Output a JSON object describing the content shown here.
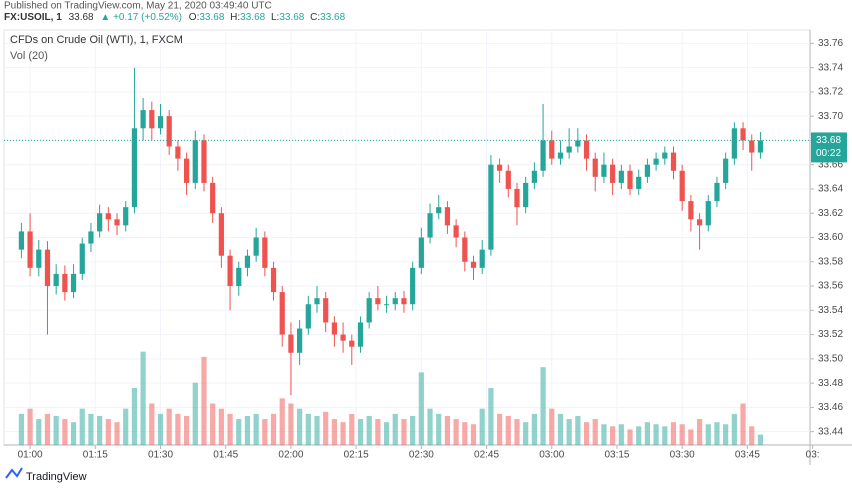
{
  "header": {
    "published": "Published on TradingView.com, May 21, 2020 03:49:40 UTC",
    "symbol": "FX:USOIL, 1",
    "last": "33.68",
    "change": "▲ +0.17 (+0.52%)",
    "ohlc": [
      {
        "label": "O:",
        "value": "33.68"
      },
      {
        "label": "H:",
        "value": "33.68"
      },
      {
        "label": "L:",
        "value": "33.68"
      },
      {
        "label": "C:",
        "value": "33.68"
      }
    ]
  },
  "footer": {
    "brand": "TradingView"
  },
  "chart_data": {
    "type": "candlestick",
    "title": "CFDs on Crude Oil (WTI), 1, FXCM",
    "volume_title": "Vol (20)",
    "up_color": "#26a69a",
    "down_color": "#ef5350",
    "grid": true,
    "last_price": 33.68,
    "countdown": "00:22",
    "xlim": [
      -2,
      90.7
    ],
    "xticks": [
      {
        "value": 1,
        "label": "01:00"
      },
      {
        "value": 8.5,
        "label": "01:15"
      },
      {
        "value": 16,
        "label": "01:30"
      },
      {
        "value": 23.5,
        "label": "01:45"
      },
      {
        "value": 31,
        "label": "02:00"
      },
      {
        "value": 38.5,
        "label": "02:15"
      },
      {
        "value": 46,
        "label": "02:30"
      },
      {
        "value": 53.5,
        "label": "02:45"
      },
      {
        "value": 61,
        "label": "03:00"
      },
      {
        "value": 68.5,
        "label": "03:15"
      },
      {
        "value": 76,
        "label": "03:30"
      },
      {
        "value": 83.5,
        "label": "03:45"
      },
      {
        "value": 91,
        "label": "03:"
      }
    ],
    "ylim": [
      33.429,
      33.771
    ],
    "yticks": [
      {
        "value": 33.44,
        "label": "33.44"
      },
      {
        "value": 33.46,
        "label": "33.46"
      },
      {
        "value": 33.48,
        "label": "33.48"
      },
      {
        "value": 33.5,
        "label": "33.50"
      },
      {
        "value": 33.52,
        "label": "33.52"
      },
      {
        "value": 33.54,
        "label": "33.54"
      },
      {
        "value": 33.56,
        "label": "33.56"
      },
      {
        "value": 33.58,
        "label": "33.58"
      },
      {
        "value": 33.6,
        "label": "33.60"
      },
      {
        "value": 33.62,
        "label": "33.62"
      },
      {
        "value": 33.64,
        "label": "33.64"
      },
      {
        "value": 33.66,
        "label": "33.66"
      },
      {
        "value": 33.68,
        "label": "33.68"
      },
      {
        "value": 33.7,
        "label": "33.70"
      },
      {
        "value": 33.72,
        "label": "33.72"
      },
      {
        "value": 33.74,
        "label": "33.74"
      },
      {
        "value": 33.76,
        "label": "33.76"
      }
    ],
    "volume_ylim": [
      0,
      400
    ],
    "open": [
      33.59,
      33.605,
      33.575,
      33.59,
      33.56,
      33.57,
      33.555,
      33.57,
      33.595,
      33.605,
      33.62,
      33.615,
      33.61,
      33.625,
      33.69,
      33.705,
      33.69,
      33.7,
      33.675,
      33.665,
      33.645,
      33.68,
      33.645,
      33.62,
      33.585,
      33.56,
      33.575,
      33.585,
      33.6,
      33.575,
      33.555,
      33.52,
      33.505,
      33.525,
      33.545,
      33.55,
      33.53,
      33.52,
      33.515,
      33.51,
      33.53,
      33.55,
      33.545,
      33.545,
      33.55,
      33.545,
      33.575,
      33.6,
      33.62,
      33.625,
      33.61,
      33.6,
      33.58,
      33.575,
      33.59,
      33.66,
      33.655,
      33.64,
      33.625,
      33.645,
      33.655,
      33.68,
      33.665,
      33.67,
      33.675,
      33.68,
      33.665,
      33.65,
      33.66,
      33.645,
      33.655,
      33.64,
      33.65,
      33.66,
      33.665,
      33.67,
      33.655,
      33.63,
      33.615,
      33.61,
      33.63,
      33.645,
      33.665,
      33.69,
      33.68,
      33.67
    ],
    "high": [
      33.612,
      33.62,
      33.598,
      33.597,
      33.578,
      33.577,
      33.578,
      33.6,
      33.612,
      33.627,
      33.625,
      33.62,
      33.63,
      33.74,
      33.715,
      33.712,
      33.71,
      33.705,
      33.68,
      33.67,
      33.688,
      33.685,
      33.65,
      33.625,
      33.59,
      33.58,
      33.59,
      33.608,
      33.605,
      33.58,
      33.56,
      33.53,
      33.532,
      33.552,
      33.56,
      33.555,
      33.535,
      33.53,
      33.52,
      33.535,
      33.555,
      33.56,
      33.552,
      33.555,
      33.556,
      33.58,
      33.608,
      33.628,
      33.635,
      33.63,
      33.615,
      33.605,
      33.585,
      33.598,
      33.668,
      33.665,
      33.66,
      33.645,
      33.65,
      33.662,
      33.71,
      33.688,
      33.68,
      33.69,
      33.69,
      33.685,
      33.67,
      33.67,
      33.665,
      33.66,
      33.66,
      33.656,
      33.665,
      33.67,
      33.675,
      33.675,
      33.66,
      33.635,
      33.62,
      33.635,
      33.65,
      33.67,
      33.695,
      33.695,
      33.685,
      33.687
    ],
    "low": [
      33.583,
      33.568,
      33.568,
      33.52,
      33.553,
      33.548,
      33.55,
      33.565,
      33.588,
      33.6,
      33.605,
      33.602,
      33.605,
      33.62,
      33.68,
      33.68,
      33.685,
      33.668,
      33.655,
      33.635,
      33.64,
      33.638,
      33.612,
      33.575,
      33.54,
      33.552,
      33.568,
      33.58,
      33.568,
      33.548,
      33.51,
      33.47,
      33.495,
      33.52,
      33.538,
      33.522,
      33.51,
      33.505,
      33.495,
      33.505,
      33.525,
      33.54,
      33.538,
      33.54,
      33.538,
      33.54,
      33.57,
      33.595,
      33.615,
      33.603,
      33.592,
      33.572,
      33.565,
      33.57,
      33.585,
      33.645,
      33.633,
      33.61,
      33.62,
      33.64,
      33.65,
      33.66,
      33.66,
      33.665,
      33.67,
      33.655,
      33.638,
      33.645,
      33.635,
      33.64,
      33.635,
      33.635,
      33.645,
      33.655,
      33.66,
      33.648,
      33.622,
      33.605,
      33.59,
      33.605,
      33.625,
      33.64,
      33.66,
      33.672,
      33.655,
      33.665
    ],
    "close": [
      33.605,
      33.575,
      33.59,
      33.56,
      33.57,
      33.555,
      33.57,
      33.595,
      33.605,
      33.62,
      33.615,
      33.61,
      33.625,
      33.69,
      33.705,
      33.69,
      33.7,
      33.675,
      33.665,
      33.645,
      33.68,
      33.645,
      33.62,
      33.585,
      33.56,
      33.575,
      33.585,
      33.6,
      33.575,
      33.555,
      33.52,
      33.505,
      33.525,
      33.545,
      33.55,
      33.53,
      33.52,
      33.515,
      33.51,
      33.53,
      33.55,
      33.545,
      33.545,
      33.55,
      33.545,
      33.575,
      33.6,
      33.62,
      33.625,
      33.61,
      33.6,
      33.58,
      33.575,
      33.59,
      33.66,
      33.655,
      33.64,
      33.625,
      33.645,
      33.655,
      33.68,
      33.665,
      33.67,
      33.675,
      33.68,
      33.665,
      33.65,
      33.66,
      33.645,
      33.655,
      33.64,
      33.65,
      33.66,
      33.665,
      33.67,
      33.655,
      33.63,
      33.615,
      33.61,
      33.63,
      33.645,
      33.665,
      33.69,
      33.68,
      33.67,
      33.68
    ],
    "volume": [
      30,
      35,
      25,
      30,
      28,
      25,
      22,
      35,
      30,
      28,
      25,
      22,
      35,
      55,
      90,
      40,
      30,
      35,
      30,
      28,
      60,
      85,
      40,
      35,
      30,
      25,
      28,
      30,
      25,
      30,
      45,
      40,
      35,
      30,
      28,
      32,
      25,
      22,
      30,
      25,
      28,
      25,
      22,
      30,
      25,
      28,
      70,
      35,
      30,
      28,
      25,
      22,
      20,
      35,
      55,
      30,
      28,
      25,
      22,
      30,
      75,
      35,
      30,
      25,
      28,
      22,
      25,
      20,
      18,
      20,
      15,
      18,
      22,
      20,
      18,
      22,
      20,
      15,
      25,
      20,
      22,
      20,
      30,
      40,
      18,
      10
    ]
  }
}
